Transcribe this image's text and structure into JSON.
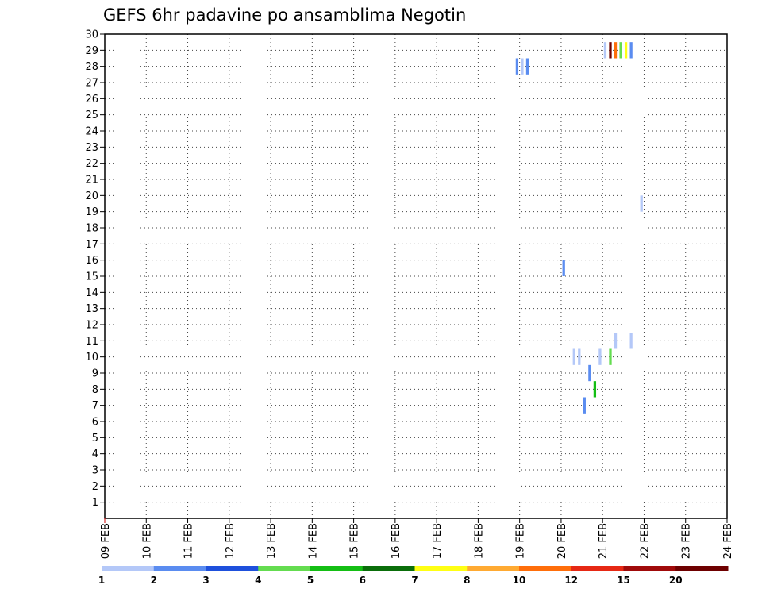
{
  "chart_data": {
    "type": "heatmap",
    "title": "GEFS 6hr padavine po ansamblima Negotin",
    "xlabel": "",
    "ylabel": "",
    "x_ticks": [
      "09 FEB",
      "10 FEB",
      "11 FEB",
      "12 FEB",
      "13 FEB",
      "14 FEB",
      "15 FEB",
      "16 FEB",
      "17 FEB",
      "18 FEB",
      "19 FEB",
      "20 FEB",
      "21 FEB",
      "22 FEB",
      "23 FEB",
      "24 FEB"
    ],
    "y_ticks": [
      1,
      2,
      3,
      4,
      5,
      6,
      7,
      8,
      9,
      10,
      11,
      12,
      13,
      14,
      15,
      16,
      17,
      18,
      19,
      20,
      21,
      22,
      23,
      24,
      25,
      26,
      27,
      28,
      29,
      30
    ],
    "xlim": [
      0,
      60
    ],
    "ylim": [
      0,
      30
    ],
    "grid": true,
    "cells": [
      {
        "t": 39.75,
        "member": 28,
        "value": 2
      },
      {
        "t": 40.25,
        "member": 28,
        "value": 1
      },
      {
        "t": 40.75,
        "member": 28,
        "value": 2
      },
      {
        "t": 44.25,
        "member": 15.5,
        "value": 2
      },
      {
        "t": 45.25,
        "member": 10,
        "value": 1
      },
      {
        "t": 45.75,
        "member": 10,
        "value": 1
      },
      {
        "t": 46.25,
        "member": 7,
        "value": 2
      },
      {
        "t": 46.75,
        "member": 9,
        "value": 2
      },
      {
        "t": 47.25,
        "member": 8,
        "value": 5
      },
      {
        "t": 47.75,
        "member": 10,
        "value": 1
      },
      {
        "t": 48.75,
        "member": 10,
        "value": 4
      },
      {
        "t": 49.25,
        "member": 11,
        "value": 1
      },
      {
        "t": 50.75,
        "member": 11,
        "value": 1
      },
      {
        "t": 51.75,
        "member": 19.5,
        "value": 1
      },
      {
        "t": 48.25,
        "member": 29,
        "value": 1
      },
      {
        "t": 48.75,
        "member": 29,
        "value": 20
      },
      {
        "t": 49.25,
        "member": 29,
        "value": 10
      },
      {
        "t": 49.75,
        "member": 29,
        "value": 4
      },
      {
        "t": 50.25,
        "member": 29,
        "value": 7
      },
      {
        "t": 50.75,
        "member": 29,
        "value": 2
      }
    ],
    "colorbar": {
      "labels": [
        "1",
        "2",
        "3",
        "4",
        "5",
        "6",
        "7",
        "8",
        "10",
        "12",
        "15",
        "20"
      ],
      "colors": [
        "#b4c8f8",
        "#5a8cf0",
        "#1e50dc",
        "#64dc50",
        "#14be14",
        "#0a6e0a",
        "#ffff14",
        "#ffaa32",
        "#ff6e0a",
        "#e62814",
        "#a00a0a",
        "#6e0000"
      ]
    }
  }
}
